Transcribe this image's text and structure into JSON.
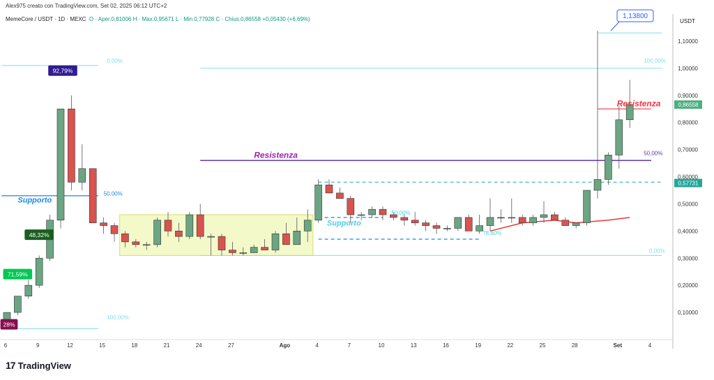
{
  "header": {
    "created": "Alex975 creato con TradingView.com, Set 02, 2025 06:12 UTC+2",
    "symbol": "MemeCore / USDT · 1D · MEXC",
    "ohlc": "O · Aper.0,81006  H · Max.0,95671  L · Min.0,77928  C · Chius.0,86558  +0,05430 (+6,69%)"
  },
  "logo": {
    "mark": "17",
    "name": "TradingView"
  },
  "chart_data": {
    "type": "candlestick",
    "currency_label": "USDT",
    "ylim": [
      0.0,
      1.2
    ],
    "yticks": [
      "0,10000",
      "0,20000",
      "0,30000",
      "0,40000",
      "0,50000",
      "0,60000",
      "0,70000",
      "0,80000",
      "0,90000",
      "1,00000",
      "1,10000"
    ],
    "xticks": [
      {
        "i": 0,
        "label": "6"
      },
      {
        "i": 3,
        "label": "9"
      },
      {
        "i": 6,
        "label": "12"
      },
      {
        "i": 9,
        "label": "15"
      },
      {
        "i": 12,
        "label": "18"
      },
      {
        "i": 15,
        "label": "21"
      },
      {
        "i": 18,
        "label": "24"
      },
      {
        "i": 21,
        "label": "27"
      },
      {
        "i": 26,
        "label": "Ago"
      },
      {
        "i": 29,
        "label": "4"
      },
      {
        "i": 32,
        "label": "7"
      },
      {
        "i": 35,
        "label": "10"
      },
      {
        "i": 38,
        "label": "13"
      },
      {
        "i": 41,
        "label": "16"
      },
      {
        "i": 44,
        "label": "19"
      },
      {
        "i": 47,
        "label": "22"
      },
      {
        "i": 50,
        "label": "25"
      },
      {
        "i": 53,
        "label": "28"
      },
      {
        "i": 57,
        "label": "Set"
      },
      {
        "i": 60,
        "label": "4"
      }
    ],
    "candles": [
      [
        0.07,
        0.1,
        0.06,
        0.1
      ],
      [
        0.1,
        0.16,
        0.09,
        0.16
      ],
      [
        0.16,
        0.22,
        0.15,
        0.2
      ],
      [
        0.2,
        0.31,
        0.19,
        0.3
      ],
      [
        0.3,
        0.46,
        0.29,
        0.44
      ],
      [
        0.44,
        0.85,
        0.41,
        0.85
      ],
      [
        0.85,
        0.9,
        0.55,
        0.58
      ],
      [
        0.58,
        0.72,
        0.55,
        0.63
      ],
      [
        0.63,
        0.63,
        0.43,
        0.43
      ],
      [
        0.43,
        0.45,
        0.39,
        0.42
      ],
      [
        0.42,
        0.43,
        0.36,
        0.39
      ],
      [
        0.39,
        0.4,
        0.34,
        0.36
      ],
      [
        0.36,
        0.37,
        0.34,
        0.35
      ],
      [
        0.35,
        0.36,
        0.33,
        0.35
      ],
      [
        0.35,
        0.45,
        0.34,
        0.44
      ],
      [
        0.44,
        0.47,
        0.38,
        0.4
      ],
      [
        0.4,
        0.43,
        0.36,
        0.38
      ],
      [
        0.38,
        0.47,
        0.37,
        0.46
      ],
      [
        0.46,
        0.5,
        0.37,
        0.38
      ],
      [
        0.38,
        0.39,
        0.31,
        0.38
      ],
      [
        0.38,
        0.39,
        0.31,
        0.33
      ],
      [
        0.33,
        0.36,
        0.31,
        0.32
      ],
      [
        0.32,
        0.34,
        0.31,
        0.32
      ],
      [
        0.32,
        0.35,
        0.32,
        0.34
      ],
      [
        0.34,
        0.37,
        0.33,
        0.33
      ],
      [
        0.33,
        0.4,
        0.32,
        0.39
      ],
      [
        0.39,
        0.43,
        0.35,
        0.35
      ],
      [
        0.35,
        0.45,
        0.35,
        0.4
      ],
      [
        0.4,
        0.48,
        0.36,
        0.44
      ],
      [
        0.44,
        0.59,
        0.43,
        0.57
      ],
      [
        0.57,
        0.59,
        0.54,
        0.54
      ],
      [
        0.54,
        0.56,
        0.52,
        0.52
      ],
      [
        0.52,
        0.53,
        0.43,
        0.46
      ],
      [
        0.46,
        0.47,
        0.44,
        0.46
      ],
      [
        0.46,
        0.49,
        0.45,
        0.48
      ],
      [
        0.48,
        0.49,
        0.44,
        0.46
      ],
      [
        0.46,
        0.47,
        0.44,
        0.45
      ],
      [
        0.45,
        0.46,
        0.42,
        0.44
      ],
      [
        0.44,
        0.47,
        0.42,
        0.43
      ],
      [
        0.43,
        0.44,
        0.4,
        0.42
      ],
      [
        0.42,
        0.43,
        0.39,
        0.41
      ],
      [
        0.41,
        0.42,
        0.4,
        0.41
      ],
      [
        0.41,
        0.45,
        0.4,
        0.45
      ],
      [
        0.45,
        0.46,
        0.4,
        0.4
      ],
      [
        0.4,
        0.46,
        0.39,
        0.42
      ],
      [
        0.42,
        0.52,
        0.4,
        0.45
      ],
      [
        0.45,
        0.48,
        0.43,
        0.45
      ],
      [
        0.45,
        0.52,
        0.43,
        0.45
      ],
      [
        0.45,
        0.46,
        0.42,
        0.43
      ],
      [
        0.43,
        0.46,
        0.42,
        0.45
      ],
      [
        0.45,
        0.51,
        0.43,
        0.46
      ],
      [
        0.46,
        0.47,
        0.44,
        0.44
      ],
      [
        0.44,
        0.45,
        0.42,
        0.42
      ],
      [
        0.42,
        0.43,
        0.41,
        0.43
      ],
      [
        0.43,
        0.55,
        0.42,
        0.55
      ],
      [
        0.55,
        1.138,
        0.52,
        0.59
      ],
      [
        0.59,
        0.69,
        0.57,
        0.68
      ],
      [
        0.68,
        0.86,
        0.63,
        0.81
      ],
      [
        0.81,
        0.957,
        0.78,
        0.866
      ]
    ],
    "ma_line": [
      [
        45,
        0.4
      ],
      [
        48,
        0.43
      ],
      [
        51,
        0.44
      ],
      [
        53,
        0.43
      ],
      [
        56,
        0.44
      ],
      [
        58,
        0.45
      ]
    ],
    "hlines": [
      {
        "y": 1.0,
        "from": 18,
        "to": 61,
        "color": "#80deea",
        "width": 1,
        "dash": ""
      },
      {
        "y": 0.31,
        "from": 18,
        "to": 61,
        "color": "#80deea",
        "width": 1,
        "dash": ""
      },
      {
        "y": 0.66,
        "from": 18,
        "to": 60,
        "color": "#5e35b1",
        "width": 1.5,
        "dash": ""
      },
      {
        "y": 0.58,
        "from": 29,
        "to": 61,
        "color": "#26a69a",
        "width": 1,
        "dash": "5,4"
      },
      {
        "y": 0.53,
        "from": -0.5,
        "to": 8.5,
        "color": "#1e88e5",
        "width": 1.3,
        "dash": ""
      },
      {
        "y": 0.37,
        "from": 29,
        "to": 44,
        "color": "#1e88e5",
        "width": 1.2,
        "dash": "5,4"
      },
      {
        "y": 0.45,
        "from": 29,
        "to": 35,
        "color": "#1e88e5",
        "width": 1.2,
        "dash": "5,4"
      },
      {
        "y": 0.85,
        "from": 55,
        "to": 60,
        "color": "#f23645",
        "width": 1.2,
        "dash": ""
      },
      {
        "y": 1.01,
        "from": -0.5,
        "to": 8.5,
        "color": "#80deea",
        "width": 1,
        "dash": ""
      },
      {
        "y": 0.04,
        "from": -0.5,
        "to": 8.5,
        "color": "#80deea",
        "width": 1,
        "dash": ""
      },
      {
        "y": 1.13,
        "from": 55,
        "to": 61,
        "color": "#80deea",
        "width": 1,
        "dash": ""
      }
    ],
    "box": {
      "x1": 10.5,
      "x2": 28.5,
      "y1": 0.31,
      "y2": 0.46
    },
    "texts": [
      {
        "t": "Resistenza",
        "i": 23,
        "y": 0.67,
        "color": "#9c27b0",
        "size": 12,
        "bold": true,
        "italic": true
      },
      {
        "t": "Resistenza",
        "i": 56.8,
        "y": 0.86,
        "color": "#f23645",
        "size": 12,
        "bold": true,
        "italic": true
      },
      {
        "t": "Supporto",
        "i": 1,
        "y": 0.505,
        "color": "#1e88e5",
        "size": 11,
        "bold": true,
        "italic": true
      },
      {
        "t": "Supporto",
        "i": 29.8,
        "y": 0.42,
        "color": "#4dd0e1",
        "size": 11,
        "bold": true,
        "italic": true
      },
      {
        "t": "50,00%",
        "i": 9,
        "y": 0.53,
        "color": "#1e88e5",
        "size": 8,
        "bold": false,
        "italic": false
      },
      {
        "t": "50,00%",
        "i": 59.3,
        "y": 0.68,
        "color": "#5e35b1",
        "size": 8,
        "bold": false,
        "italic": false
      },
      {
        "t": "50,00%",
        "i": 35.8,
        "y": 0.46,
        "color": "#4dd0e1",
        "size": 8,
        "bold": false,
        "italic": false
      },
      {
        "t": "78,60%",
        "i": 44.3,
        "y": 0.385,
        "color": "#4dd0e1",
        "size": 8,
        "bold": false,
        "italic": false
      },
      {
        "t": "0,00%",
        "i": 9.3,
        "y": 1.02,
        "color": "#80deea",
        "size": 8,
        "bold": false,
        "italic": false
      },
      {
        "t": "100,00%",
        "i": 9.3,
        "y": 0.075,
        "color": "#80deea",
        "size": 8,
        "bold": false,
        "italic": false
      },
      {
        "t": "100,00%",
        "i": 59.3,
        "y": 1.02,
        "color": "#80deea",
        "size": 8,
        "bold": false,
        "italic": false
      },
      {
        "t": "0,00%",
        "i": 59.8,
        "y": 0.32,
        "color": "#80deea",
        "size": 8,
        "bold": false,
        "italic": false
      }
    ],
    "badges": [
      {
        "t": "92,79%",
        "i": 5,
        "y": 0.99,
        "color": "#311b92"
      },
      {
        "t": "48,32%",
        "i": 2.8,
        "y": 0.385,
        "color": "#1b5e20"
      },
      {
        "t": "71,59%",
        "i": 0.8,
        "y": 0.24,
        "color": "#00c853"
      },
      {
        "t": "28%",
        "i": 0,
        "y": 0.055,
        "color": "#880e4f"
      }
    ],
    "callout": {
      "t": "1,13800",
      "i": 56.3,
      "y": 1.138
    },
    "price_tags": [
      {
        "t": "0,86558",
        "y": 0.866,
        "color": "#4caf7f"
      },
      {
        "t": "0,57731",
        "y": 0.577,
        "color": "#26a69a"
      }
    ]
  }
}
